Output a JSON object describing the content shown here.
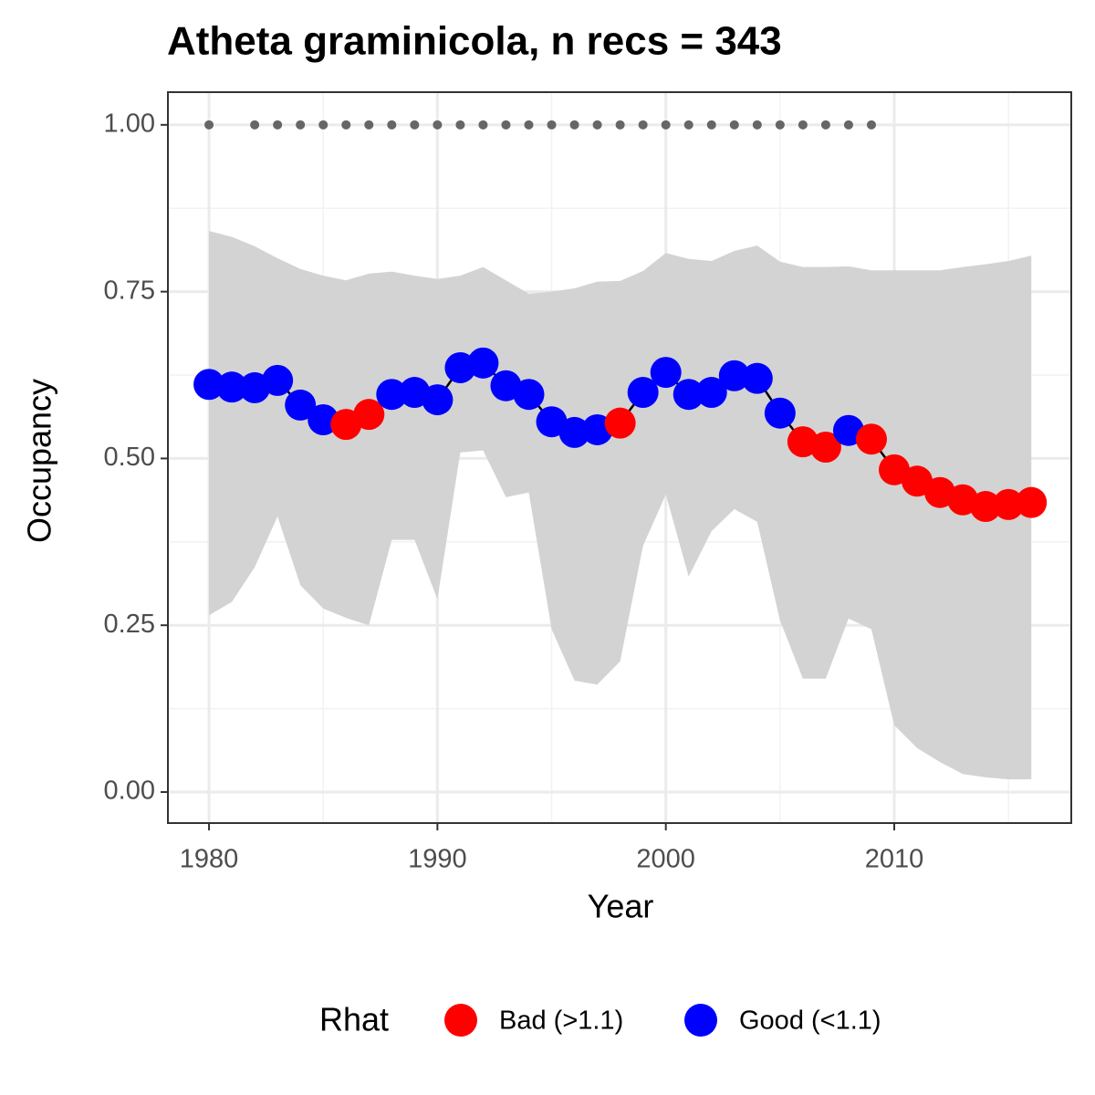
{
  "chart_data": {
    "type": "line",
    "title": "Atheta graminicola, n recs = 343",
    "x_label": "Year",
    "y_label": "Occupancy",
    "x": [
      1980,
      1981,
      1982,
      1983,
      1984,
      1985,
      1986,
      1987,
      1988,
      1989,
      1990,
      1991,
      1992,
      1993,
      1994,
      1995,
      1996,
      1997,
      1998,
      1999,
      2000,
      2001,
      2002,
      2003,
      2004,
      2005,
      2006,
      2007,
      2008,
      2009,
      2010,
      2011,
      2012,
      2013,
      2014,
      2015,
      2016
    ],
    "values": [
      0.611,
      0.607,
      0.606,
      0.617,
      0.58,
      0.558,
      0.551,
      0.566,
      0.596,
      0.599,
      0.588,
      0.636,
      0.643,
      0.609,
      0.596,
      0.555,
      0.539,
      0.543,
      0.553,
      0.599,
      0.629,
      0.596,
      0.599,
      0.624,
      0.62,
      0.568,
      0.525,
      0.517,
      0.542,
      0.529,
      0.483,
      0.466,
      0.449,
      0.438,
      0.428,
      0.431,
      0.434
    ],
    "upper": [
      0.841,
      0.832,
      0.818,
      0.8,
      0.784,
      0.774,
      0.767,
      0.777,
      0.78,
      0.774,
      0.769,
      0.774,
      0.787,
      0.767,
      0.747,
      0.75,
      0.755,
      0.765,
      0.766,
      0.781,
      0.808,
      0.799,
      0.796,
      0.811,
      0.819,
      0.795,
      0.787,
      0.787,
      0.788,
      0.782,
      0.782,
      0.782,
      0.782,
      0.787,
      0.791,
      0.796,
      0.804
    ],
    "lower": [
      0.265,
      0.285,
      0.337,
      0.413,
      0.31,
      0.275,
      0.261,
      0.25,
      0.378,
      0.378,
      0.289,
      0.509,
      0.512,
      0.442,
      0.449,
      0.244,
      0.167,
      0.161,
      0.196,
      0.369,
      0.446,
      0.323,
      0.391,
      0.424,
      0.405,
      0.257,
      0.17,
      0.17,
      0.26,
      0.244,
      0.1,
      0.066,
      0.045,
      0.027,
      0.022,
      0.019,
      0.019
    ],
    "rhat": [
      "Good (<1.1)",
      "Good (<1.1)",
      "Good (<1.1)",
      "Good (<1.1)",
      "Good (<1.1)",
      "Good (<1.1)",
      "Bad (>1.1)",
      "Bad (>1.1)",
      "Good (<1.1)",
      "Good (<1.1)",
      "Good (<1.1)",
      "Good (<1.1)",
      "Good (<1.1)",
      "Good (<1.1)",
      "Good (<1.1)",
      "Good (<1.1)",
      "Good (<1.1)",
      "Good (<1.1)",
      "Bad (>1.1)",
      "Good (<1.1)",
      "Good (<1.1)",
      "Good (<1.1)",
      "Good (<1.1)",
      "Good (<1.1)",
      "Good (<1.1)",
      "Good (<1.1)",
      "Bad (>1.1)",
      "Bad (>1.1)",
      "Good (<1.1)",
      "Bad (>1.1)",
      "Bad (>1.1)",
      "Bad (>1.1)",
      "Bad (>1.1)",
      "Bad (>1.1)",
      "Bad (>1.1)",
      "Bad (>1.1)",
      "Bad (>1.1)"
    ],
    "line_color": "#000000",
    "ribbon_color": "#d3d3d3",
    "records": {
      "color": "#666666",
      "x": [
        1980,
        1982,
        1983,
        1984,
        1985,
        1986,
        1987,
        1988,
        1989,
        1990,
        1991,
        1992,
        1993,
        1994,
        1995,
        1996,
        1997,
        1998,
        1999,
        2000,
        2001,
        2002,
        2003,
        2004,
        2005,
        2006,
        2007,
        2008,
        2009
      ],
      "values": [
        1,
        1,
        1,
        1,
        1,
        1,
        1,
        1,
        1,
        1,
        1,
        1,
        1,
        1,
        1,
        1,
        1,
        1,
        1,
        1,
        1,
        1,
        1,
        1,
        1,
        1,
        1,
        1,
        1
      ]
    },
    "legend": {
      "title": "Rhat",
      "position": "bottom",
      "entries": [
        {
          "label": "Bad (>1.1)",
          "color": "#ff0000"
        },
        {
          "label": "Good (<1.1)",
          "color": "#0000ff"
        }
      ]
    },
    "xlim": [
      1978.2,
      2017.75
    ],
    "ylim": [
      -0.0465,
      1.049
    ],
    "xticks": [
      1980,
      1990,
      2000,
      2010
    ],
    "yticks": [
      {
        "value": 0,
        "label": "0.00"
      },
      {
        "value": 0.25,
        "label": "0.25"
      },
      {
        "value": 0.5,
        "label": "0.50"
      },
      {
        "value": 0.75,
        "label": "0.75"
      },
      {
        "value": 1,
        "label": "1.00"
      }
    ],
    "grid": true
  }
}
